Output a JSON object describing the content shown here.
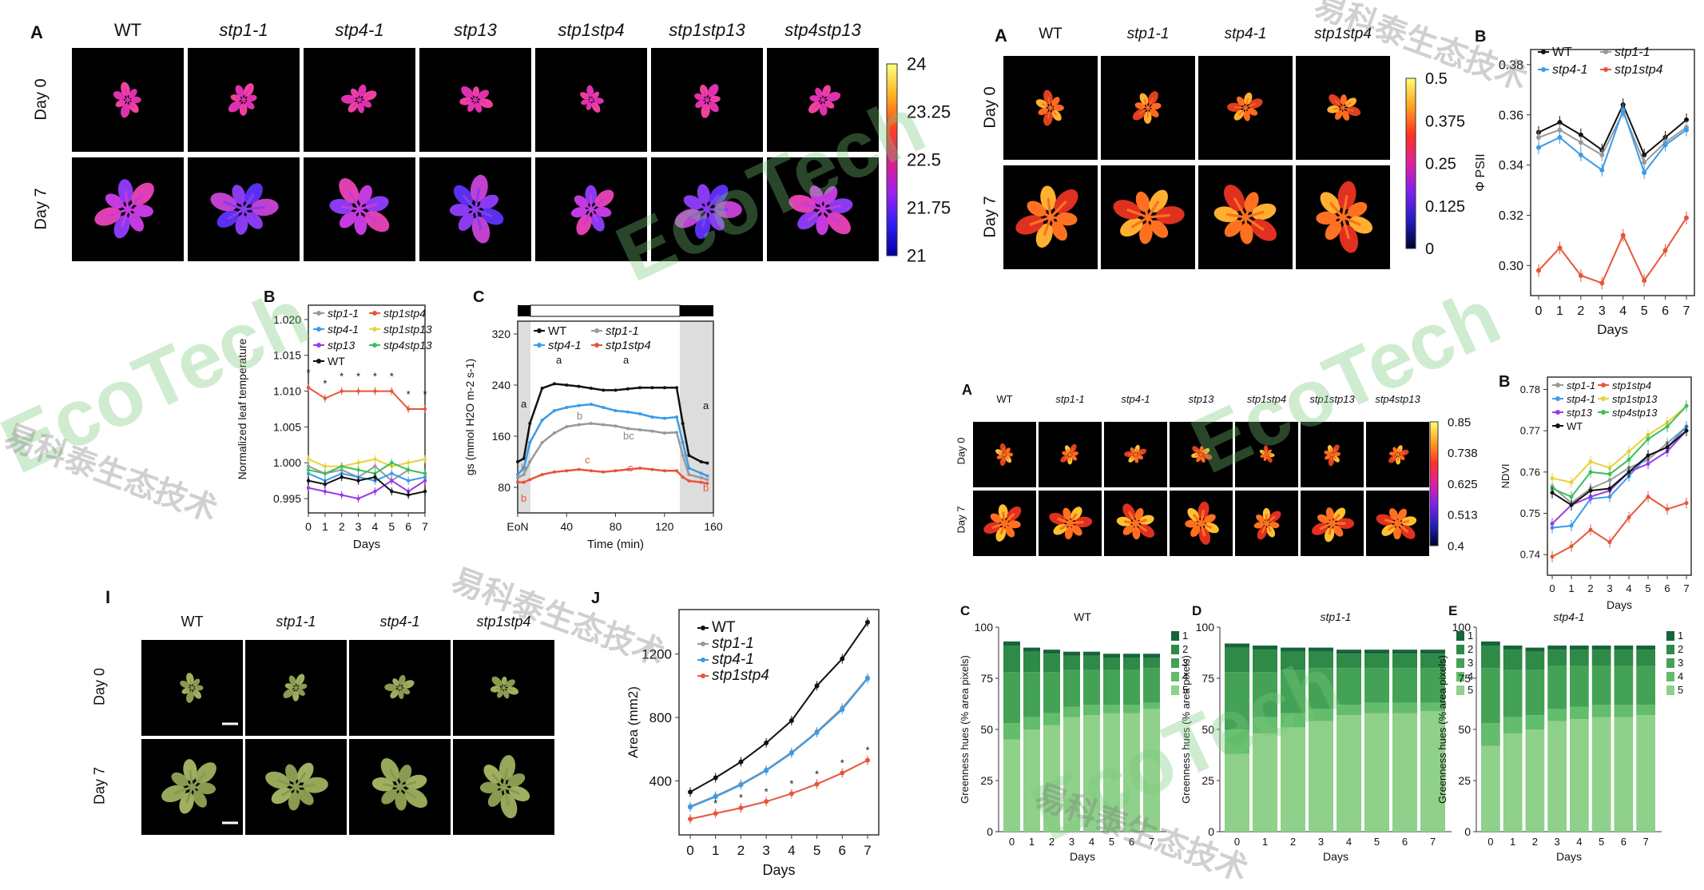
{
  "panel1": {
    "label_A": "A",
    "genotypes": [
      "WT",
      "stp1-1",
      "stp4-1",
      "stp13",
      "stp1stp4",
      "stp1stp13",
      "stp4stp13"
    ],
    "rows": [
      "Day 0",
      "Day 7"
    ],
    "colorbar": [
      "24",
      "23.25",
      "22.5",
      "21.75",
      "21"
    ]
  },
  "panel2": {
    "label_A": "A",
    "label_B": "B",
    "genotypes": [
      "WT",
      "stp1-1",
      "stp4-1",
      "stp1stp4"
    ],
    "rows": [
      "Day 0",
      "Day 7"
    ],
    "colorbar": [
      "0.5",
      "0.375",
      "0.25",
      "0.125",
      "0"
    ]
  },
  "panel3": {
    "label_A": "A",
    "label_B": "B",
    "genotypes": [
      "WT",
      "stp1-1",
      "stp4-1",
      "stp13",
      "stp1stp4",
      "stp1stp13",
      "stp4stp13"
    ],
    "rows": [
      "Day 0",
      "Day 7"
    ],
    "colorbar": [
      "0.85",
      "0.738",
      "0.625",
      "0.513",
      "0.4"
    ]
  },
  "panel4": {
    "label_I": "I",
    "genotypes": [
      "WT",
      "stp1-1",
      "stp4-1",
      "stp1stp4"
    ],
    "rows": [
      "Day 0",
      "Day 7"
    ]
  },
  "chart_data": [
    {
      "id": "leaf-temp",
      "type": "line",
      "label": "B",
      "ylabel": "Normalized leaf temperature",
      "xlabel": "Days",
      "x": [
        0,
        1,
        2,
        3,
        4,
        5,
        6,
        7
      ],
      "ylim": [
        0.993,
        1.022
      ],
      "yticks": [
        "0.995",
        "1.000",
        "1.005",
        "1.010",
        "1.015",
        "1.020"
      ],
      "series": [
        {
          "name": "stp1-1",
          "color": "#999999",
          "values": [
            0.9995,
            0.9985,
            0.999,
            0.998,
            0.9995,
            0.9975,
            0.999,
            0.9985
          ]
        },
        {
          "name": "stp1stp4",
          "color": "#e8553a",
          "values": [
            1.0105,
            1.009,
            1.01,
            1.01,
            1.01,
            1.01,
            1.0075,
            1.0075
          ]
        },
        {
          "name": "stp4-1",
          "color": "#3a9be8",
          "values": [
            0.9985,
            0.9975,
            0.9985,
            0.998,
            0.9975,
            0.9985,
            0.9975,
            0.998
          ]
        },
        {
          "name": "stp1stp13",
          "color": "#e8d23a",
          "values": [
            1.0005,
            0.9995,
            0.9995,
            1.0,
            1.0005,
            0.9995,
            1.0,
            1.0005
          ]
        },
        {
          "name": "stp13",
          "color": "#9b3ae8",
          "values": [
            0.9965,
            0.996,
            0.9955,
            0.995,
            0.996,
            0.9975,
            0.996,
            0.9975
          ]
        },
        {
          "name": "stp4stp13",
          "color": "#3ac05a",
          "values": [
            0.999,
            0.9985,
            0.9995,
            0.999,
            0.9985,
            1.0,
            0.999,
            0.9985
          ]
        },
        {
          "name": "WT",
          "color": "#111111",
          "values": [
            0.9975,
            0.997,
            0.998,
            0.9975,
            0.998,
            0.996,
            0.9955,
            0.996
          ]
        }
      ],
      "annotation": "*"
    },
    {
      "id": "gs",
      "type": "line",
      "label": "C",
      "ylabel": "gs (mmol H2O m-2 s-1)",
      "xlabel": "Time (min)",
      "xticks": [
        "EoN",
        "40",
        "80",
        "120",
        "160"
      ],
      "yticks": [
        "80",
        "160",
        "240",
        "320"
      ],
      "xlim": [
        0,
        160
      ],
      "ylim": [
        40,
        340
      ],
      "series": [
        {
          "name": "WT",
          "color": "#111111",
          "x": [
            0,
            5,
            10,
            20,
            30,
            40,
            50,
            60,
            70,
            80,
            90,
            100,
            110,
            120,
            130,
            135,
            140,
            150,
            155
          ],
          "values": [
            120,
            125,
            180,
            235,
            242,
            240,
            238,
            235,
            232,
            232,
            234,
            236,
            236,
            236,
            236,
            180,
            130,
            120,
            118
          ]
        },
        {
          "name": "stp1-1",
          "color": "#999999",
          "x": [
            0,
            5,
            10,
            20,
            30,
            40,
            50,
            60,
            70,
            80,
            90,
            100,
            110,
            120,
            130,
            135,
            140,
            150,
            155
          ],
          "values": [
            95,
            100,
            120,
            150,
            165,
            175,
            178,
            180,
            178,
            176,
            172,
            170,
            168,
            165,
            166,
            130,
            100,
            95,
            92
          ]
        },
        {
          "name": "stp4-1",
          "color": "#3a9be8",
          "x": [
            0,
            5,
            10,
            20,
            30,
            40,
            50,
            60,
            70,
            80,
            90,
            100,
            110,
            120,
            130,
            135,
            140,
            150,
            155
          ],
          "values": [
            100,
            110,
            150,
            185,
            200,
            205,
            208,
            210,
            205,
            200,
            198,
            195,
            190,
            188,
            190,
            150,
            110,
            102,
            98
          ]
        },
        {
          "name": "stp1stp4",
          "color": "#e8553a",
          "x": [
            0,
            5,
            10,
            20,
            30,
            40,
            50,
            60,
            70,
            80,
            90,
            100,
            110,
            120,
            130,
            135,
            140,
            150,
            155
          ],
          "values": [
            88,
            88,
            92,
            100,
            104,
            106,
            108,
            106,
            104,
            106,
            108,
            110,
            108,
            106,
            106,
            96,
            90,
            88,
            86
          ]
        }
      ],
      "letters": [
        "a",
        "b",
        "c",
        "bc",
        "a",
        "b",
        "c"
      ]
    },
    {
      "id": "psii",
      "type": "line",
      "label": "B",
      "ylabel": "Φ PSII",
      "xlabel": "Days",
      "x": [
        0,
        1,
        2,
        3,
        4,
        5,
        6,
        7
      ],
      "ylim": [
        0.288,
        0.386
      ],
      "yticks": [
        "0.30",
        "0.32",
        "0.34",
        "0.36",
        "0.38"
      ],
      "series": [
        {
          "name": "WT",
          "color": "#111111",
          "values": [
            0.353,
            0.357,
            0.352,
            0.346,
            0.364,
            0.344,
            0.351,
            0.358
          ]
        },
        {
          "name": "stp1-1",
          "color": "#999999",
          "values": [
            0.351,
            0.354,
            0.349,
            0.344,
            0.361,
            0.341,
            0.349,
            0.355
          ]
        },
        {
          "name": "stp4-1",
          "color": "#3a9be8",
          "values": [
            0.347,
            0.351,
            0.344,
            0.338,
            0.362,
            0.337,
            0.348,
            0.354
          ]
        },
        {
          "name": "stp1stp4",
          "color": "#e8553a",
          "values": [
            0.298,
            0.307,
            0.296,
            0.293,
            0.312,
            0.294,
            0.306,
            0.319
          ]
        }
      ]
    },
    {
      "id": "ndvi",
      "type": "line",
      "label": "B",
      "ylabel": "NDVI",
      "xlabel": "Days",
      "x": [
        0,
        1,
        2,
        3,
        4,
        5,
        6,
        7
      ],
      "ylim": [
        0.735,
        0.783
      ],
      "yticks": [
        "0.74",
        "0.75",
        "0.76",
        "0.77",
        "0.78"
      ],
      "series": [
        {
          "name": "stp1-1",
          "color": "#999999",
          "values": [
            0.7565,
            0.7525,
            0.756,
            0.758,
            0.761,
            0.763,
            0.767,
            0.771
          ]
        },
        {
          "name": "stp1stp4",
          "color": "#e8553a",
          "values": [
            0.7395,
            0.742,
            0.746,
            0.743,
            0.749,
            0.754,
            0.751,
            0.7525
          ]
        },
        {
          "name": "stp4-1",
          "color": "#3a9be8",
          "values": [
            0.7465,
            0.747,
            0.7535,
            0.754,
            0.759,
            0.764,
            0.766,
            0.771
          ]
        },
        {
          "name": "stp1stp13",
          "color": "#e8d23a",
          "values": [
            0.7585,
            0.7575,
            0.7625,
            0.761,
            0.765,
            0.769,
            0.772,
            0.776
          ]
        },
        {
          "name": "stp13",
          "color": "#9b3ae8",
          "values": [
            0.7475,
            0.752,
            0.754,
            0.7555,
            0.76,
            0.762,
            0.765,
            0.77
          ]
        },
        {
          "name": "stp4stp13",
          "color": "#3ac05a",
          "values": [
            0.756,
            0.754,
            0.76,
            0.7595,
            0.763,
            0.768,
            0.771,
            0.776
          ]
        },
        {
          "name": "WT",
          "color": "#111111",
          "values": [
            0.755,
            0.752,
            0.7555,
            0.756,
            0.76,
            0.764,
            0.766,
            0.77
          ]
        }
      ]
    },
    {
      "id": "area",
      "type": "line",
      "label": "J",
      "ylabel": "Area (mm2)",
      "xlabel": "Days",
      "x": [
        0,
        1,
        2,
        3,
        4,
        5,
        6,
        7
      ],
      "ylim": [
        60,
        1480
      ],
      "yticks": [
        "400",
        "800",
        "1200"
      ],
      "series": [
        {
          "name": "WT",
          "color": "#111111",
          "values": [
            330,
            420,
            520,
            640,
            780,
            1000,
            1170,
            1400
          ]
        },
        {
          "name": "stp1-1",
          "color": "#999999",
          "values": [
            240,
            305,
            380,
            470,
            580,
            710,
            860,
            1050
          ]
        },
        {
          "name": "stp4-1",
          "color": "#3a9be8",
          "values": [
            235,
            300,
            375,
            465,
            575,
            705,
            850,
            1045
          ]
        },
        {
          "name": "stp1stp4",
          "color": "#e8553a",
          "values": [
            160,
            195,
            230,
            270,
            320,
            380,
            450,
            530
          ]
        }
      ]
    },
    {
      "id": "green-WT",
      "type": "bar",
      "label": "C",
      "title": "WT",
      "ylabel": "Greenness hues (% area pixels)",
      "xlabel": "Days",
      "categories": [
        "0",
        "1",
        "2",
        "3",
        "4",
        "5",
        "6",
        "7"
      ],
      "ylim": [
        0,
        100
      ],
      "yticks": [
        "0",
        "25",
        "50",
        "75",
        "100"
      ],
      "legend": [
        "1",
        "2",
        "3",
        "4",
        "5"
      ],
      "stacks": [
        [
          45,
          8,
          25,
          13,
          2
        ],
        [
          50,
          6,
          22,
          10,
          2
        ],
        [
          52,
          6,
          20,
          9,
          2
        ],
        [
          56,
          5,
          18,
          7,
          2
        ],
        [
          57,
          5,
          17,
          7,
          2
        ],
        [
          58,
          4,
          17,
          6,
          2
        ],
        [
          58,
          4,
          17,
          6,
          2
        ],
        [
          60,
          3,
          17,
          5,
          2
        ]
      ]
    },
    {
      "id": "green-stp1",
      "type": "bar",
      "label": "D",
      "title": "stp1-1",
      "ylabel": "Greenness hues (% area pixels)",
      "xlabel": "Days",
      "categories": [
        "0",
        "1",
        "2",
        "3",
        "4",
        "5",
        "6",
        "7"
      ],
      "ylim": [
        0,
        100
      ],
      "yticks": [
        "0",
        "25",
        "50",
        "75",
        "100"
      ],
      "legend": [
        "1",
        "2",
        "3",
        "4",
        "5"
      ],
      "stacks": [
        [
          38,
          12,
          28,
          12,
          2
        ],
        [
          48,
          8,
          22,
          11,
          2
        ],
        [
          51,
          7,
          21,
          9,
          2
        ],
        [
          54,
          6,
          20,
          8,
          2
        ],
        [
          57,
          5,
          18,
          7,
          2
        ],
        [
          58,
          5,
          17,
          7,
          2
        ],
        [
          58,
          5,
          17,
          7,
          2
        ],
        [
          59,
          4,
          17,
          7,
          2
        ]
      ]
    },
    {
      "id": "green-stp4",
      "type": "bar",
      "label": "E",
      "title": "stp4-1",
      "ylabel": "Greenness hues (% area pixels)",
      "xlabel": "Days",
      "categories": [
        "0",
        "1",
        "2",
        "3",
        "4",
        "5",
        "6",
        "7"
      ],
      "ylim": [
        0,
        100
      ],
      "yticks": [
        "0",
        "25",
        "50",
        "75",
        "100"
      ],
      "legend": [
        "1",
        "2",
        "3",
        "4",
        "5"
      ],
      "stacks": [
        [
          42,
          11,
          27,
          11,
          2
        ],
        [
          48,
          8,
          23,
          10,
          2
        ],
        [
          50,
          7,
          22,
          9,
          2
        ],
        [
          54,
          6,
          21,
          8,
          2
        ],
        [
          55,
          6,
          20,
          8,
          2
        ],
        [
          56,
          6,
          19,
          8,
          2
        ],
        [
          56,
          6,
          19,
          8,
          2
        ],
        [
          57,
          5,
          19,
          8,
          2
        ]
      ]
    }
  ],
  "watermark": {
    "latin": "EcoTech",
    "chinese": "易科泰生态技术"
  }
}
